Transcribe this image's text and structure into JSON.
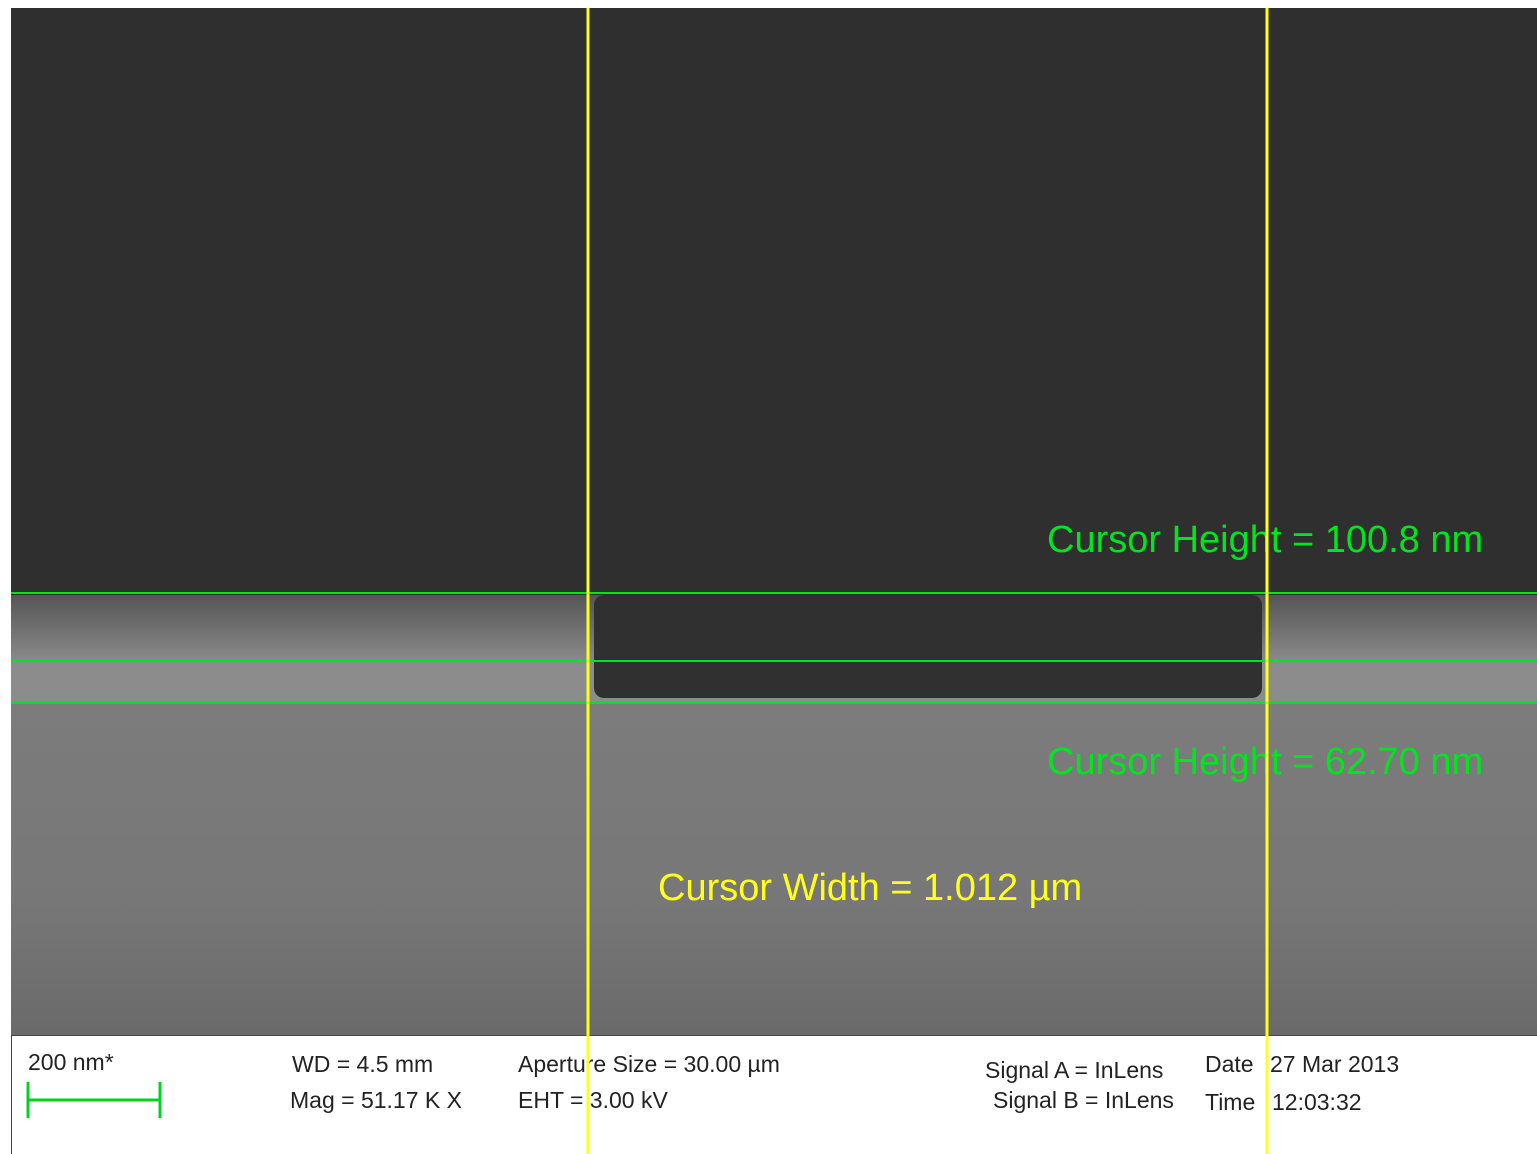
{
  "image": {
    "measurements": [
      {
        "label": "Cursor Height = 100.8 nm",
        "color": "#00e61e"
      },
      {
        "label": "Cursor Height = 62.70 nm",
        "color": "#00e61e"
      },
      {
        "label": "Cursor Width = 1.012 µm",
        "color": "#ffff1e"
      }
    ]
  },
  "info_bar": {
    "scale_bar": "200 nm*",
    "wd": "WD =  4.5 mm",
    "mag": "Mag =  51.17 K X",
    "aperture": "Aperture Size = 30.00 µm",
    "eht": "EHT =  3.00 kV",
    "signal_a": "Signal A = InLens",
    "signal_b": "Signal B = InLens",
    "date_label": "Date",
    "date": "27 Mar 2013",
    "time_label": "Time",
    "time": "12:03:32"
  }
}
